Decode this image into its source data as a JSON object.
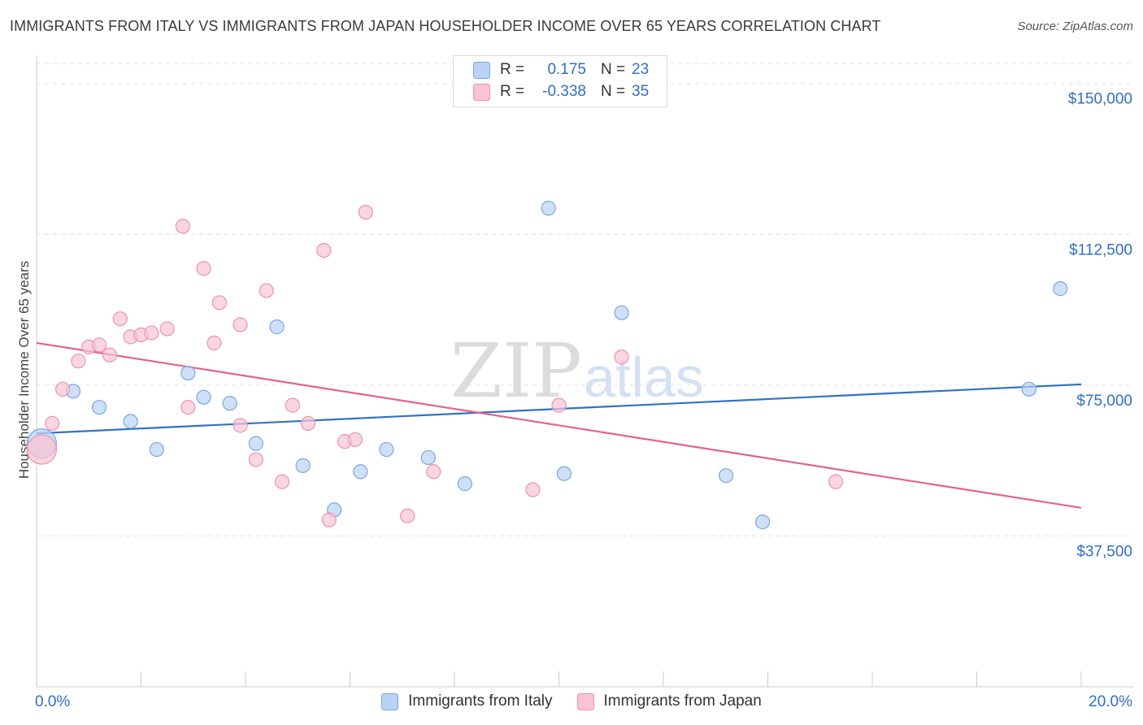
{
  "title": "IMMIGRANTS FROM ITALY VS IMMIGRANTS FROM JAPAN HOUSEHOLDER INCOME OVER 65 YEARS CORRELATION CHART",
  "source": "Source: ZipAtlas.com",
  "watermark": {
    "zip": "ZIP",
    "atlas": "atlas"
  },
  "legend_top": [
    {
      "r_label": "R =",
      "r_value": "0.175",
      "n_label": "N =",
      "n_value": "23"
    },
    {
      "r_label": "R =",
      "r_value": "-0.338",
      "n_label": "N =",
      "n_value": "35"
    }
  ],
  "legend_bottom": [
    {
      "label": "Immigrants from Italy"
    },
    {
      "label": "Immigrants from Japan"
    }
  ],
  "colors": {
    "italy_fill": "#b9d3f5",
    "italy_stroke": "#7aa6df",
    "italy_line": "#2f72c9",
    "japan_fill": "#f8c4d3",
    "japan_stroke": "#ec93ad",
    "japan_line": "#e4628c",
    "tick_label": "#2f6fc4",
    "grid": "#e2e2e2",
    "axis": "#cccccc"
  },
  "chart_data": {
    "type": "scatter",
    "title": "IMMIGRANTS FROM ITALY VS IMMIGRANTS FROM JAPAN HOUSEHOLDER INCOME OVER 65 YEARS CORRELATION CHART",
    "xlabel": "",
    "ylabel": "Householder Income Over 65 years",
    "xlim": [
      0,
      20
    ],
    "ylim": [
      0,
      155000
    ],
    "x_tick_labels": [
      "0.0%",
      "20.0%"
    ],
    "y_ticks": [
      37500,
      75000,
      112500,
      150000
    ],
    "y_tick_labels": [
      "$37,500",
      "$75,000",
      "$112,500",
      "$150,000"
    ],
    "grid": true,
    "legend_position": "top-center",
    "series": [
      {
        "name": "Immigrants from Italy",
        "r": 0.175,
        "n": 23,
        "trend": {
          "x": [
            0,
            20
          ],
          "y": [
            63000,
            75200
          ]
        },
        "points": [
          {
            "x": 0.1,
            "y": 60500,
            "large": true
          },
          {
            "x": 0.7,
            "y": 73500
          },
          {
            "x": 1.2,
            "y": 69500
          },
          {
            "x": 1.8,
            "y": 66000
          },
          {
            "x": 2.3,
            "y": 59000
          },
          {
            "x": 2.9,
            "y": 78000
          },
          {
            "x": 3.2,
            "y": 72000
          },
          {
            "x": 3.7,
            "y": 70500
          },
          {
            "x": 4.2,
            "y": 60500
          },
          {
            "x": 4.6,
            "y": 89500
          },
          {
            "x": 5.1,
            "y": 55000
          },
          {
            "x": 5.7,
            "y": 44000
          },
          {
            "x": 6.2,
            "y": 53500
          },
          {
            "x": 6.7,
            "y": 59000
          },
          {
            "x": 7.5,
            "y": 57000
          },
          {
            "x": 8.2,
            "y": 50500
          },
          {
            "x": 9.8,
            "y": 119000
          },
          {
            "x": 10.1,
            "y": 53000
          },
          {
            "x": 11.2,
            "y": 93000
          },
          {
            "x": 13.2,
            "y": 52500
          },
          {
            "x": 13.9,
            "y": 41000
          },
          {
            "x": 19.0,
            "y": 74000
          },
          {
            "x": 19.6,
            "y": 99000
          }
        ]
      },
      {
        "name": "Immigrants from Japan",
        "r": -0.338,
        "n": 35,
        "trend": {
          "x": [
            0,
            20
          ],
          "y": [
            85500,
            44500
          ]
        },
        "points": [
          {
            "x": 0.1,
            "y": 59000,
            "large": true
          },
          {
            "x": 0.3,
            "y": 65500
          },
          {
            "x": 0.5,
            "y": 74000
          },
          {
            "x": 0.8,
            "y": 81000
          },
          {
            "x": 1.0,
            "y": 84500
          },
          {
            "x": 1.2,
            "y": 85000
          },
          {
            "x": 1.4,
            "y": 82500
          },
          {
            "x": 1.6,
            "y": 91500
          },
          {
            "x": 1.8,
            "y": 87000
          },
          {
            "x": 2.0,
            "y": 87500
          },
          {
            "x": 2.2,
            "y": 88000
          },
          {
            "x": 2.5,
            "y": 89000
          },
          {
            "x": 2.8,
            "y": 114500
          },
          {
            "x": 2.9,
            "y": 69500
          },
          {
            "x": 3.2,
            "y": 104000
          },
          {
            "x": 3.4,
            "y": 85500
          },
          {
            "x": 3.5,
            "y": 95500
          },
          {
            "x": 3.9,
            "y": 65000
          },
          {
            "x": 3.9,
            "y": 90000
          },
          {
            "x": 4.2,
            "y": 56500
          },
          {
            "x": 4.4,
            "y": 98500
          },
          {
            "x": 4.7,
            "y": 51000
          },
          {
            "x": 4.9,
            "y": 70000
          },
          {
            "x": 5.2,
            "y": 65500
          },
          {
            "x": 5.5,
            "y": 108500
          },
          {
            "x": 5.6,
            "y": 41500
          },
          {
            "x": 5.9,
            "y": 61000
          },
          {
            "x": 6.1,
            "y": 61500
          },
          {
            "x": 6.3,
            "y": 118000
          },
          {
            "x": 7.1,
            "y": 42500
          },
          {
            "x": 7.6,
            "y": 53500
          },
          {
            "x": 9.5,
            "y": 49000
          },
          {
            "x": 10.0,
            "y": 70000
          },
          {
            "x": 11.2,
            "y": 82000
          },
          {
            "x": 15.3,
            "y": 51000
          }
        ]
      }
    ]
  }
}
